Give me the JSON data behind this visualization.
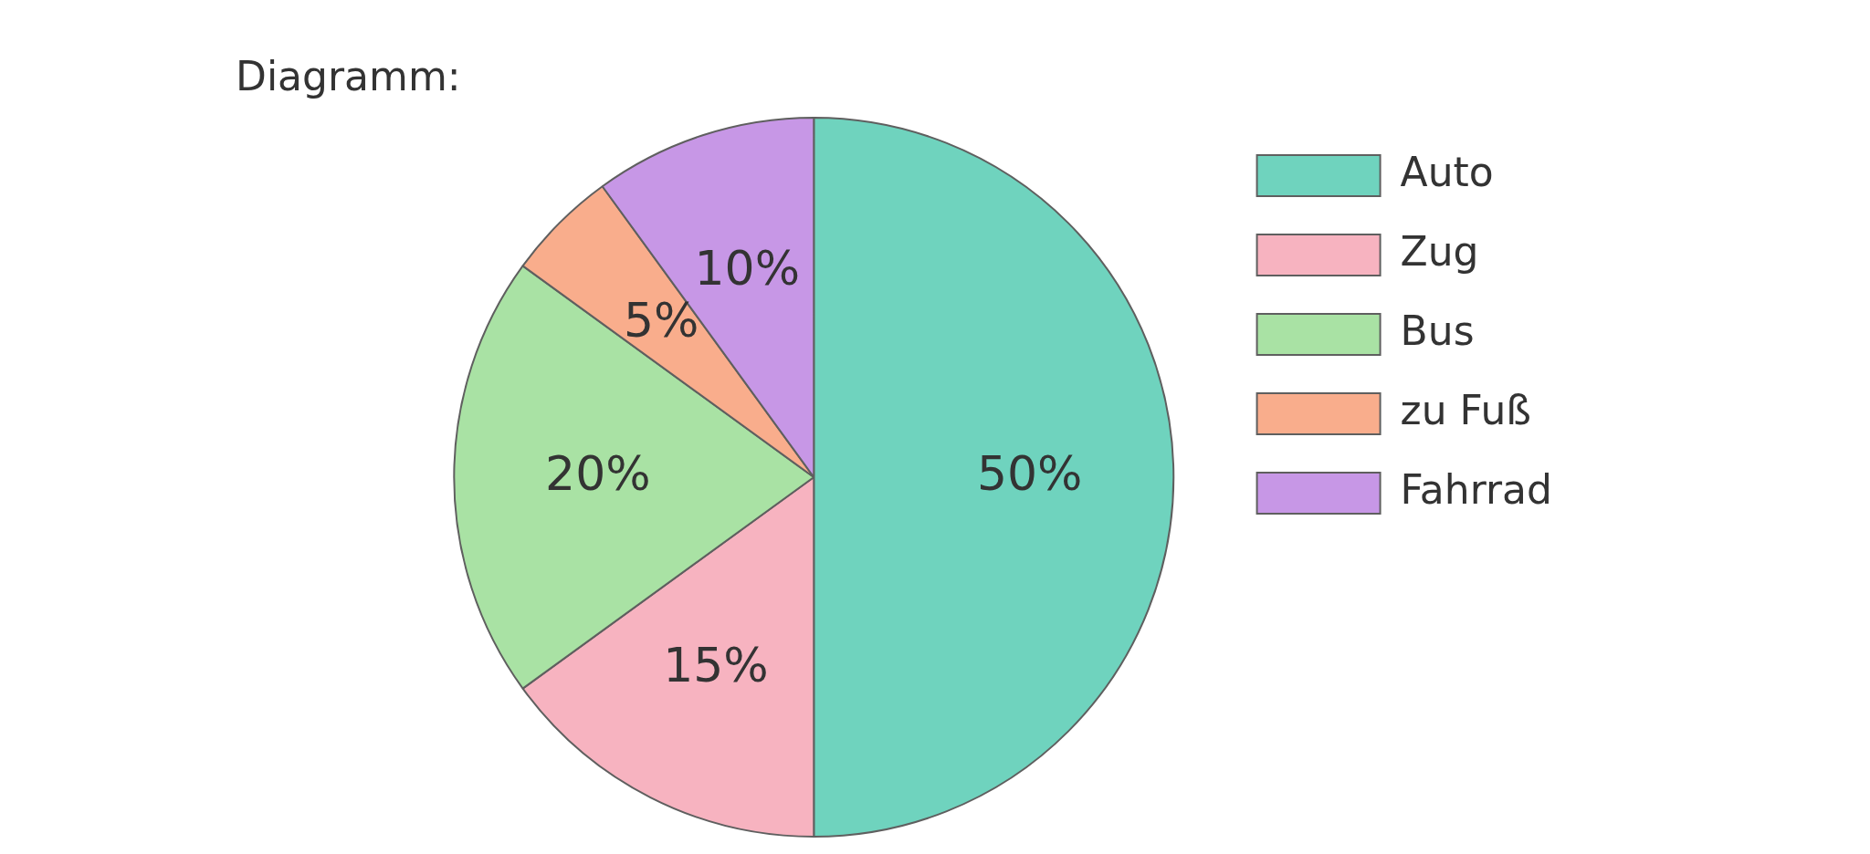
{
  "chart_data": {
    "type": "pie",
    "title": "Diagramm:",
    "categories": [
      "Auto",
      "Zug",
      "Bus",
      "zu Fuß",
      "Fahrrad"
    ],
    "values": [
      50,
      15,
      20,
      5,
      10
    ],
    "colors": [
      "#6fd3be",
      "#f7b3c0",
      "#a9e2a4",
      "#f9ad8c",
      "#c797e6"
    ],
    "value_labels": [
      "50%",
      "15%",
      "20%",
      "5%",
      "10%"
    ],
    "legend": "right"
  }
}
